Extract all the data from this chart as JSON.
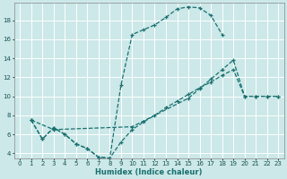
{
  "xlabel": "Humidex (Indice chaleur)",
  "bg_color": "#cce8e8",
  "grid_color": "#ffffff",
  "line_color": "#1a7070",
  "xlim": [
    -0.5,
    23.5
  ],
  "ylim": [
    3.5,
    19.8
  ],
  "xticks": [
    0,
    1,
    2,
    3,
    4,
    5,
    6,
    7,
    8,
    9,
    10,
    11,
    12,
    13,
    14,
    15,
    16,
    17,
    18,
    19,
    20,
    21,
    22,
    23
  ],
  "yticks": [
    4,
    6,
    8,
    10,
    12,
    14,
    16,
    18
  ],
  "line1_x": [
    1,
    2,
    3,
    4,
    5,
    6,
    7,
    8,
    9,
    10,
    11,
    12,
    13,
    14,
    15,
    16,
    17,
    18
  ],
  "line1_y": [
    7.5,
    5.5,
    6.7,
    6.0,
    5.0,
    4.5,
    3.6,
    3.5,
    11.2,
    16.5,
    17.0,
    17.5,
    18.3,
    19.2,
    19.4,
    19.3,
    18.5,
    16.5
  ],
  "line2_x": [
    1,
    3,
    10,
    15,
    16,
    17,
    18,
    19,
    20,
    21,
    22,
    23
  ],
  "line2_y": [
    7.5,
    6.5,
    6.8,
    9.8,
    10.8,
    11.8,
    12.8,
    13.8,
    10.0,
    10.0,
    10.0,
    10.0
  ],
  "line3_x": [
    1,
    2,
    3,
    4,
    5,
    6,
    7,
    8,
    9,
    10,
    11,
    12,
    13,
    14,
    15,
    16,
    17,
    18,
    19,
    20,
    21,
    22,
    23
  ],
  "line3_y": [
    7.5,
    5.5,
    6.7,
    6.0,
    5.0,
    4.5,
    3.6,
    3.5,
    5.2,
    6.5,
    7.3,
    8.0,
    8.8,
    9.5,
    10.2,
    10.9,
    11.5,
    12.2,
    12.8,
    10.0,
    10.0,
    10.0,
    10.0
  ]
}
